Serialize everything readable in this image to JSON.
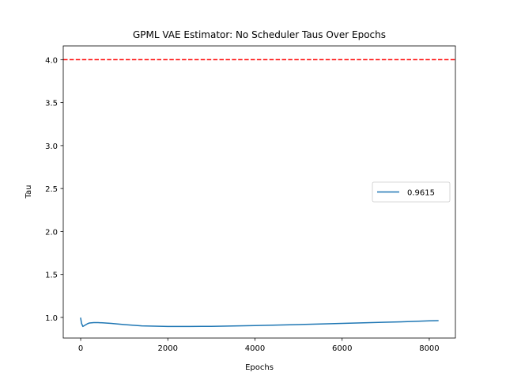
{
  "chart_data": {
    "type": "line",
    "title": "GPML VAE Estimator: No Scheduler Taus Over Epochs",
    "xlabel": "Epochs",
    "ylabel": "Tau",
    "xlim": [
      -400,
      8600
    ],
    "ylim": [
      0.76,
      4.16
    ],
    "xticks": [
      0,
      2000,
      4000,
      6000,
      8000
    ],
    "xtick_labels": [
      "0",
      "2000",
      "4000",
      "6000",
      "8000"
    ],
    "yticks": [
      1.0,
      1.5,
      2.0,
      2.5,
      3.0,
      3.5,
      4.0
    ],
    "ytick_labels": [
      "1.0",
      "1.5",
      "2.0",
      "2.5",
      "3.0",
      "3.5",
      "4.0"
    ],
    "grid": false,
    "legend_position": "center-right",
    "series": [
      {
        "name": "0.9615",
        "color": "#1f77b4",
        "x": [
          0,
          20,
          50,
          100,
          150,
          200,
          300,
          400,
          500,
          700,
          1000,
          1400,
          2000,
          2500,
          3000,
          3500,
          4000,
          4500,
          5000,
          5500,
          6000,
          6500,
          7000,
          7500,
          8000,
          8200
        ],
        "y": [
          0.99,
          0.93,
          0.895,
          0.91,
          0.925,
          0.935,
          0.94,
          0.94,
          0.937,
          0.93,
          0.917,
          0.902,
          0.895,
          0.895,
          0.896,
          0.9,
          0.905,
          0.911,
          0.917,
          0.924,
          0.931,
          0.937,
          0.944,
          0.951,
          0.96,
          0.963
        ]
      }
    ],
    "reference_lines": [
      {
        "axis": "y",
        "value": 4.0,
        "color": "#ff0000",
        "style": "dashed"
      }
    ]
  }
}
